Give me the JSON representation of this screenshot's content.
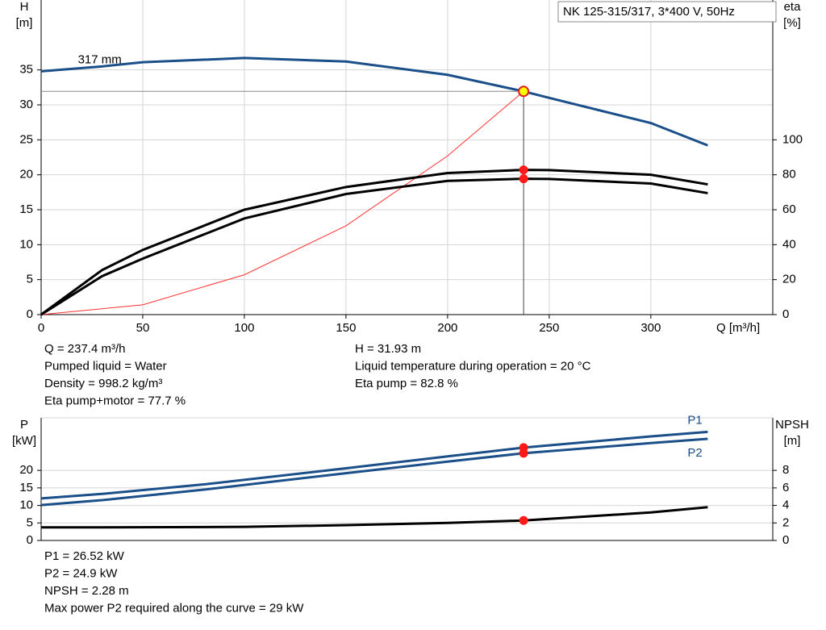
{
  "chart_data": [
    {
      "type": "line",
      "title": "NK 125-315/317, 3*400 V, 50Hz",
      "ylabel": [
        "H",
        "[m]"
      ],
      "y2label": [
        "eta",
        "[%]"
      ],
      "xlabel": "Q [m³/h]",
      "xlim": [
        0,
        360
      ],
      "xticks": [
        0,
        50,
        100,
        150,
        200,
        250,
        300
      ],
      "ylim": [
        0,
        45
      ],
      "yticks": [
        0,
        5,
        10,
        15,
        20,
        25,
        30,
        35
      ],
      "y2lim": [
        0,
        180
      ],
      "y2ticks": [
        0,
        20,
        40,
        60,
        80,
        100
      ],
      "grid": true,
      "operating_q": 237.4,
      "series": [
        {
          "name": "317 mm",
          "color": "#1a4f8a",
          "x": [
            0,
            30,
            50,
            100,
            150,
            200,
            237.4,
            250,
            300,
            328
          ],
          "values": [
            34.8,
            35.5,
            36.1,
            36.7,
            36.2,
            34.3,
            31.93,
            31.0,
            27.4,
            24.2
          ]
        },
        {
          "color": "#ff3030",
          "x": [
            0,
            50,
            100,
            150,
            200,
            237.4
          ],
          "values": [
            0,
            1.4,
            5.7,
            12.7,
            22.7,
            31.93
          ]
        },
        {
          "color": "#000000",
          "axis": "y2",
          "x": [
            0,
            30,
            50,
            100,
            150,
            200,
            237.4,
            250,
            300,
            328
          ],
          "values": [
            0,
            25.5,
            37,
            60,
            73,
            81,
            82.8,
            82.7,
            80,
            74.5
          ]
        },
        {
          "color": "#000000",
          "axis": "y2",
          "x": [
            0,
            30,
            50,
            100,
            150,
            200,
            237.4,
            250,
            300,
            328
          ],
          "values": [
            0,
            22,
            32,
            55,
            69,
            76.5,
            77.7,
            77.6,
            75,
            69.5
          ]
        }
      ],
      "info": [
        [
          "Q = 237.4 m³/h",
          "Pumped liquid = Water",
          "Density = 998.2 kg/m³",
          "Eta pump+motor = 77.7 %"
        ],
        [
          "H = 31.93 m",
          "Liquid temperature during operation = 20 °C",
          "Eta pump = 82.8 %"
        ]
      ]
    },
    {
      "type": "line",
      "ylabel": [
        "P",
        "[kW]"
      ],
      "y2label": [
        "NPSH",
        "[m]"
      ],
      "xlim": [
        0,
        360
      ],
      "ylim": [
        0,
        35
      ],
      "yticks": [
        0,
        5,
        10,
        15,
        20
      ],
      "y2lim": [
        0,
        14
      ],
      "y2ticks": [
        0,
        2,
        4,
        6,
        8
      ],
      "grid": true,
      "operating_q": 237.4,
      "series": [
        {
          "name": "P1",
          "color": "#1a4f8a",
          "x": [
            0,
            30,
            80,
            150,
            200,
            237.4,
            300,
            328
          ],
          "values": [
            12,
            13.3,
            16,
            20.6,
            24,
            26.52,
            29.7,
            31
          ]
        },
        {
          "name": "P2",
          "color": "#1a4f8a",
          "x": [
            0,
            30,
            80,
            150,
            200,
            237.4,
            300,
            328
          ],
          "values": [
            10.1,
            11.5,
            14.5,
            19.2,
            22.5,
            24.9,
            27.8,
            29
          ]
        },
        {
          "color": "#000000",
          "axis": "y2",
          "x": [
            0,
            30,
            100,
            150,
            200,
            237.4,
            300,
            328
          ],
          "values": [
            1.5,
            1.5,
            1.55,
            1.75,
            2.0,
            2.28,
            3.2,
            3.8
          ]
        }
      ],
      "info": [
        [
          "P1 = 26.52 kW",
          "P2 = 24.9 kW",
          "NPSH = 2.28 m",
          "Max power P2 required along the curve = 29 kW"
        ]
      ]
    }
  ]
}
